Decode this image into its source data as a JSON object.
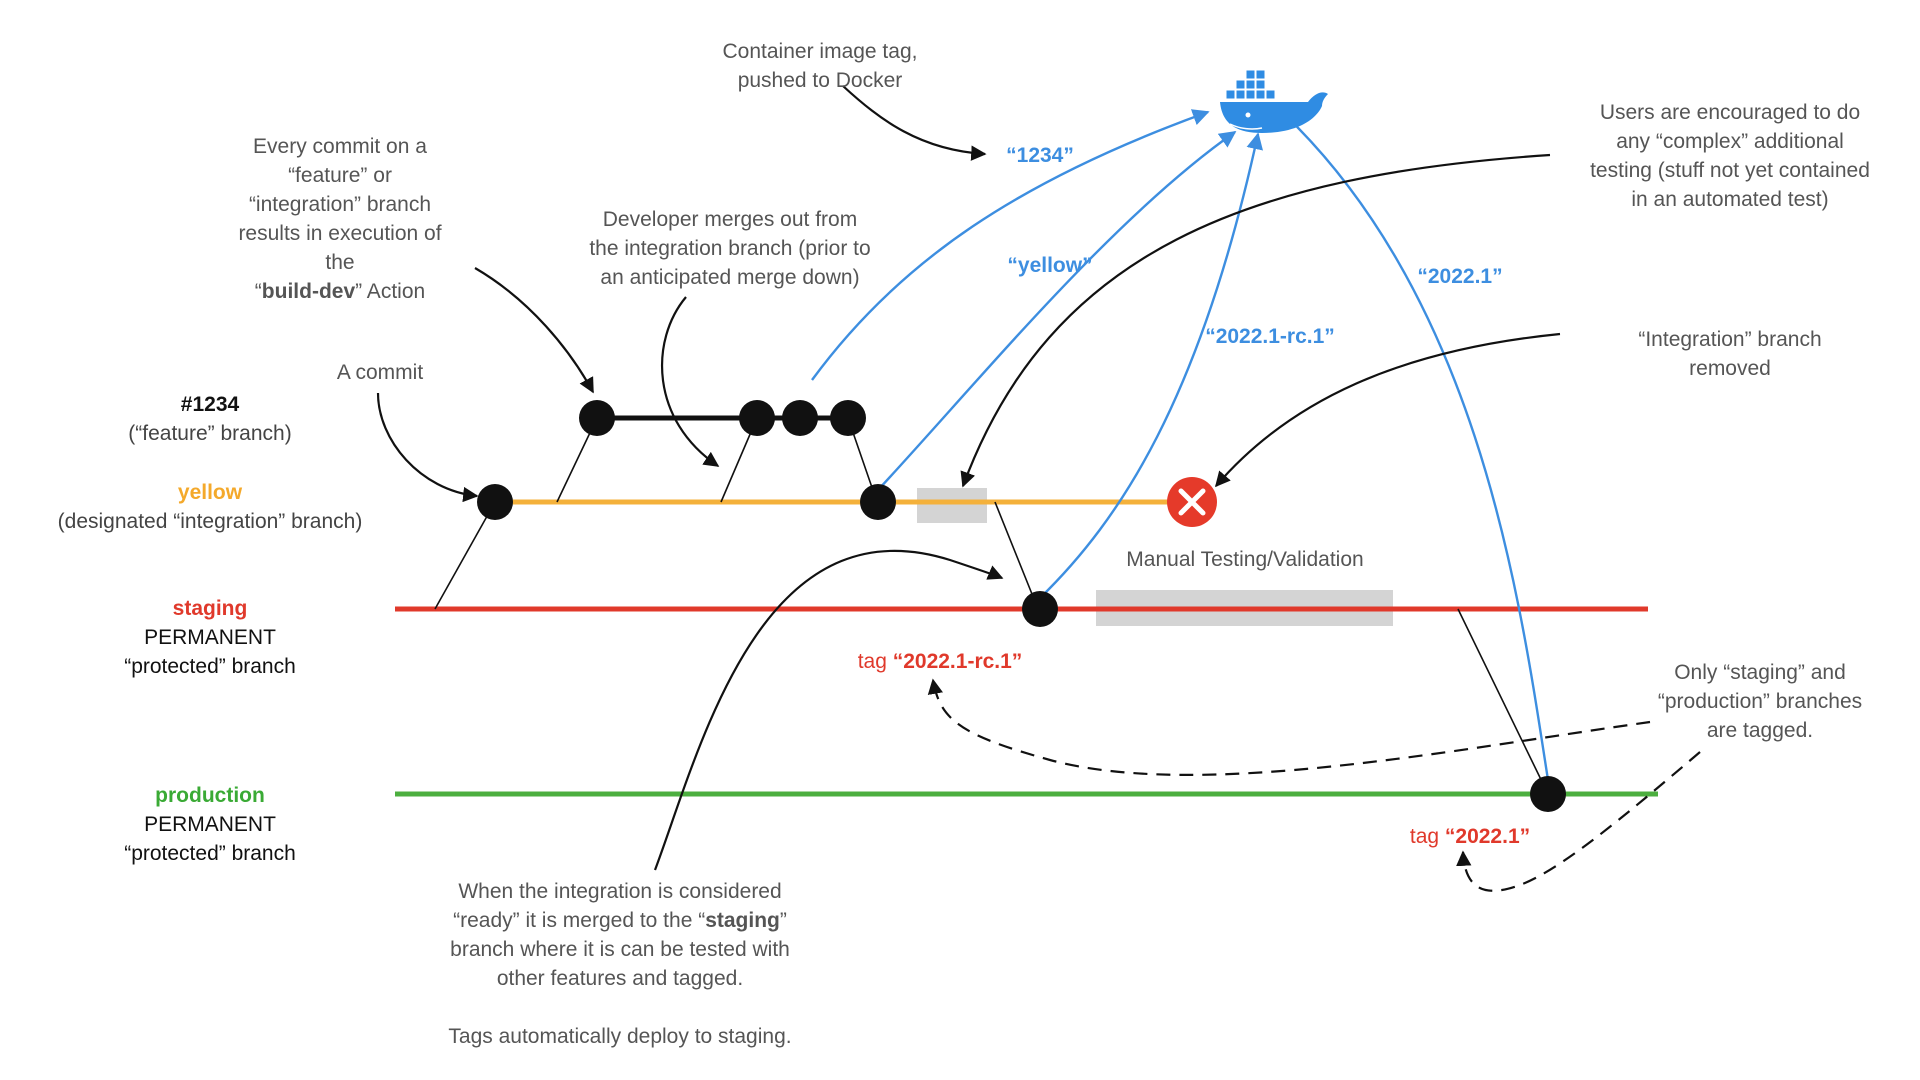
{
  "branches": {
    "feature": {
      "name": "#1234",
      "desc": "(“feature” branch)"
    },
    "yellow": {
      "name": "yellow",
      "desc": "(designated “integration” branch)"
    },
    "staging": {
      "name": "staging",
      "desc1": "PERMANENT",
      "desc2": "“protected” branch"
    },
    "production": {
      "name": "production",
      "desc1": "PERMANENT",
      "desc2": "“protected” branch"
    }
  },
  "annotations": {
    "commit": "A commit",
    "every_commit": {
      "l1": "Every commit on a",
      "l2": "“feature” or",
      "l3": "“integration” branch",
      "l4": "results in execution of",
      "l5": "the",
      "l6_q1": "“",
      "l6_bold": "build-dev",
      "l6_rest": "” Action"
    },
    "merge_out": {
      "l1": "Developer merges out from",
      "l2": "the integration branch (prior to",
      "l3": "an anticipated merge down)"
    },
    "container_tag": {
      "l1": "Container image tag,",
      "l2": "pushed to Docker"
    },
    "users": {
      "l1": "Users are encouraged to do",
      "l2": "any “complex” additional",
      "l3": "testing (stuff not yet contained",
      "l4": "in an automated test)"
    },
    "integration_removed": {
      "l1": "“Integration” branch",
      "l2": "removed"
    },
    "manual_testing": "Manual Testing/Validation",
    "only_tagged": {
      "l1": "Only “staging” and",
      "l2": "“production” branches",
      "l3": "are tagged."
    },
    "ready": {
      "l1": "When the integration is considered",
      "l2_a": "“ready” it is merged to the “",
      "l2_bold": "staging",
      "l2_b": "”",
      "l3": "branch where it is can be tested with",
      "l4": "other features and tagged.",
      "l5": "Tags automatically deploy to staging."
    }
  },
  "docker_tags": {
    "t1234": {
      "q1": "“",
      "v": "1234",
      "q2": "”"
    },
    "yellow": {
      "q1": "“",
      "v": "yellow",
      "q2": "”"
    },
    "rc": {
      "q1": "“",
      "v": "2022.1-rc.1",
      "q2": "”"
    },
    "release": {
      "q1": "“",
      "v": "2022.1",
      "q2": "”"
    }
  },
  "git_tags": {
    "rc": {
      "prefix": "tag ",
      "v": "“2022.1-rc.1”"
    },
    "release": {
      "prefix": "tag ",
      "v": "“2022.1”"
    }
  },
  "colors": {
    "yellow_branch": "#f4b13b",
    "staging_branch": "#e0392b",
    "production_branch": "#4caf3f",
    "docker_blue": "#3d8ee0",
    "removed_red": "#e53a2a",
    "testing_gray": "#d4d4d4"
  },
  "icons": [
    "docker-whale-icon",
    "removed-x-icon"
  ]
}
